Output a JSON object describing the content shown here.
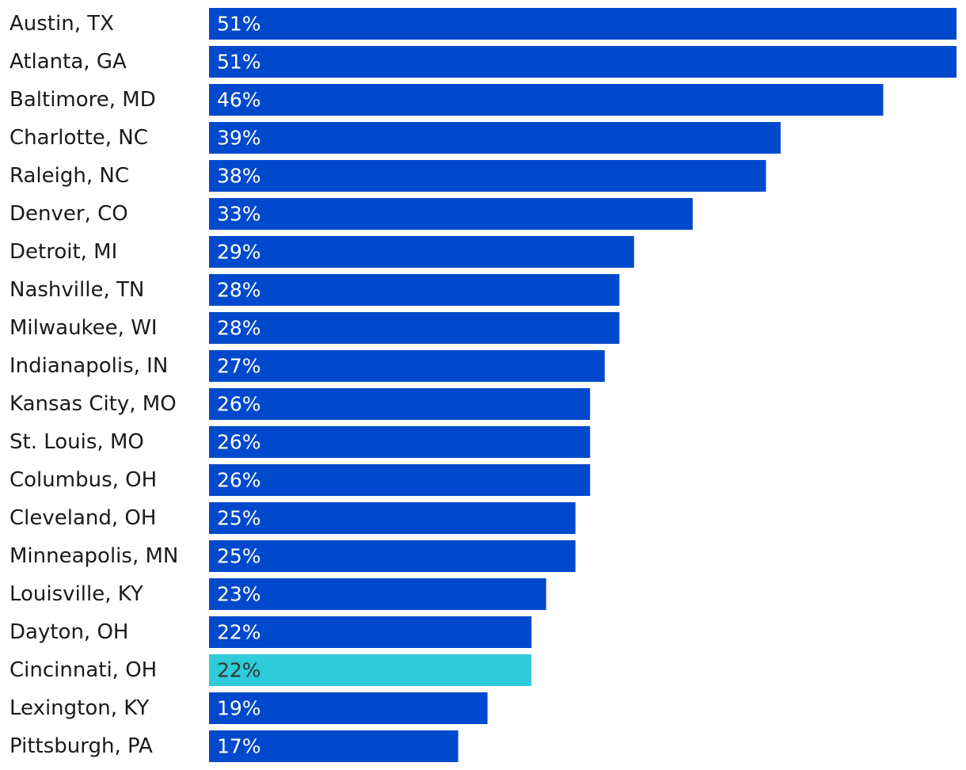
{
  "chart_data": {
    "type": "bar",
    "orientation": "horizontal",
    "categories": [
      "Austin, TX",
      "Atlanta, GA",
      "Baltimore, MD",
      "Charlotte, NC",
      "Raleigh, NC",
      "Denver, CO",
      "Detroit, MI",
      "Nashville, TN",
      "Milwaukee, WI",
      "Indianapolis, IN",
      "Kansas City, MO",
      "St. Louis, MO",
      "Columbus, OH",
      "Cleveland, OH",
      "Minneapolis, MN",
      "Louisville, KY",
      "Dayton, OH",
      "Cincinnati, OH",
      "Lexington, KY",
      "Pittsburgh, PA"
    ],
    "values": [
      51,
      51,
      46,
      39,
      38,
      33,
      29,
      28,
      28,
      27,
      26,
      26,
      26,
      25,
      25,
      23,
      22,
      22,
      19,
      17
    ],
    "value_labels": [
      "51%",
      "51%",
      "46%",
      "39%",
      "38%",
      "33%",
      "29%",
      "28%",
      "28%",
      "27%",
      "26%",
      "26%",
      "26%",
      "25%",
      "25%",
      "23%",
      "22%",
      "22%",
      "19%",
      "17%"
    ],
    "highlight_category": "Cincinnati, OH",
    "xlim": [
      0,
      51
    ],
    "grid": false,
    "legend": "none",
    "colors": {
      "bar": "#0049cc",
      "highlight_bar": "#2ecbdb",
      "label_on_bar": "#ffffff",
      "label_on_highlight": "#333333",
      "category_text": "#1a1a1a"
    }
  }
}
